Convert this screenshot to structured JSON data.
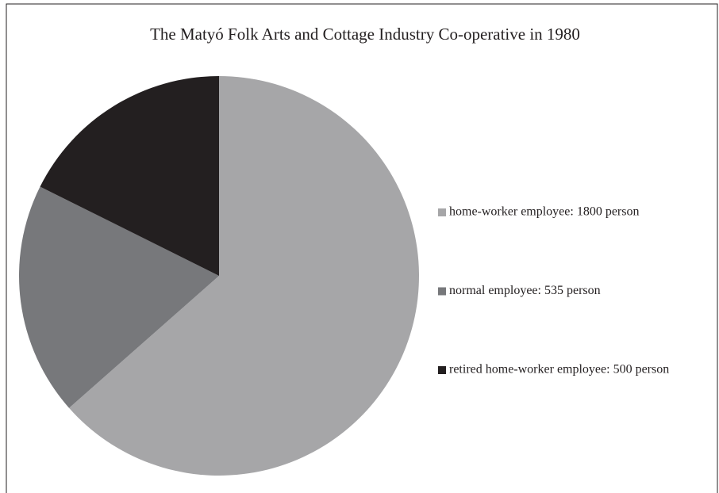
{
  "chart_data": {
    "type": "pie",
    "title": "The Matyó Folk Arts and Cottage Industry Co-operative in 1980",
    "values": [
      1800,
      535,
      500
    ],
    "value_labels": [
      "home-worker employee: 1800 person",
      "normal employee: 535 person",
      "retired home-worker employee: 500 person"
    ],
    "colors": [
      "#a6a6a8",
      "#77787b",
      "#231f20"
    ],
    "legend": "right"
  }
}
